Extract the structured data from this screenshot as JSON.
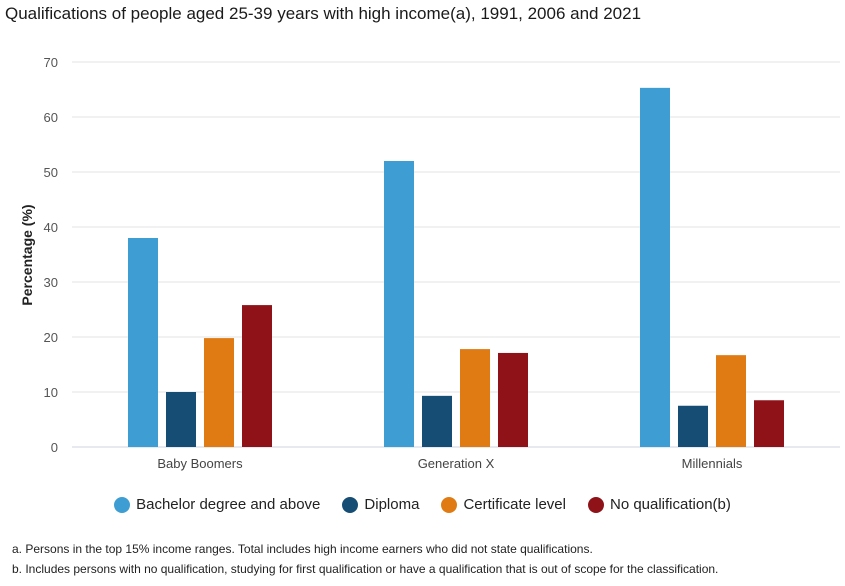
{
  "chart_data": {
    "type": "bar",
    "title": "Qualifications of people aged 25-39 years with high income(a), 1991, 2006 and 2021",
    "xlabel": "",
    "ylabel": "Percentage (%)",
    "ylim": [
      0,
      70
    ],
    "yticks": [
      "0",
      "10",
      "20",
      "30",
      "40",
      "50",
      "60",
      "70"
    ],
    "grid": true,
    "legend_position": "bottom",
    "categories": [
      "Baby Boomers",
      "Generation X",
      "Millennials"
    ],
    "series": [
      {
        "name": "Bachelor degree and above",
        "color": "#3e9dd3",
        "values": [
          38.0,
          52.0,
          65.3
        ]
      },
      {
        "name": "Diploma",
        "color": "#154d74",
        "values": [
          10.0,
          9.3,
          7.5
        ]
      },
      {
        "name": "Certificate level",
        "color": "#e07b13",
        "values": [
          19.8,
          17.8,
          16.7
        ]
      },
      {
        "name": "No qualification(b)",
        "color": "#8f1218",
        "values": [
          25.8,
          17.1,
          8.5
        ]
      }
    ]
  },
  "notes": [
    "a. Persons in the top 15% income ranges. Total includes high income earners who did not state qualifications.",
    "b. Includes persons with no qualification, studying for first qualification or have a qualification that is out of scope for the classification."
  ]
}
